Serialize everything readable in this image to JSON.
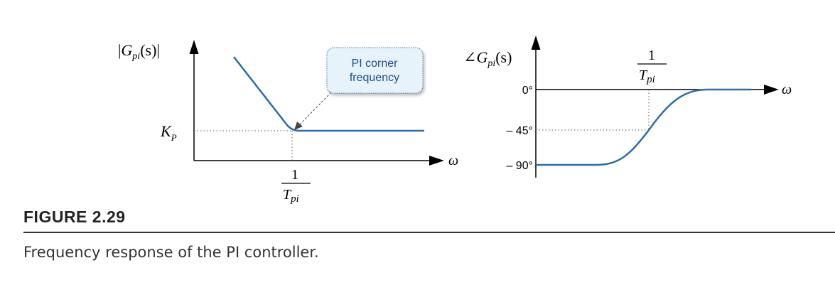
{
  "left_plot": {
    "y_axis_label": {
      "prefix": "|",
      "G": "G",
      "sub": "pi",
      "arg": "(s)",
      "suffix": "|"
    },
    "y_tick": {
      "K": "K",
      "sub": "P"
    },
    "x_axis_label": "ω",
    "x_tick": {
      "numerator": "1",
      "T": "T",
      "sub": "pi"
    },
    "callout": {
      "line1": "PI corner",
      "line2": "frequency"
    }
  },
  "right_plot": {
    "y_axis_label": {
      "prefix": "∠",
      "G": "G",
      "sub": "pi",
      "arg": "(s)"
    },
    "y_ticks": [
      "0°",
      "– 45°",
      "– 90°"
    ],
    "x_axis_label": "ω",
    "x_tick": {
      "numerator": "1",
      "T": "T",
      "sub": "pi"
    }
  },
  "colors": {
    "curve": "#2b6cb0",
    "callout_fill": "#e6f3fb",
    "callout_border": "#5a7fa0"
  },
  "caption": {
    "label": "FIGURE 2.29",
    "text": "Frequency response of the PI controller."
  }
}
